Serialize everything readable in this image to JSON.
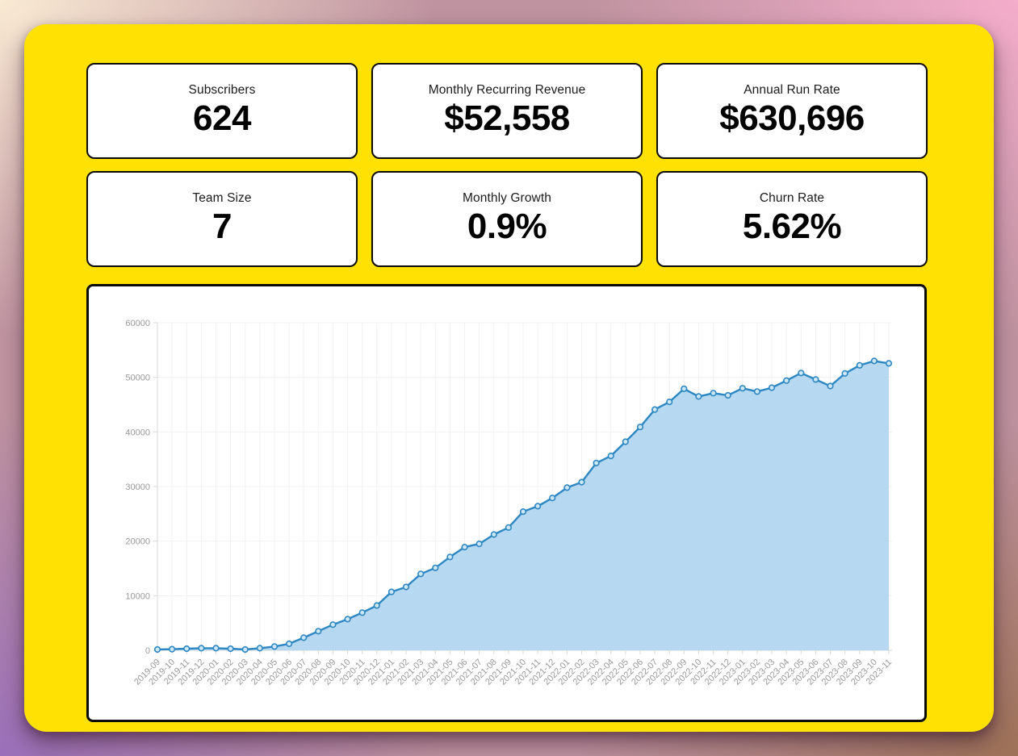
{
  "colors": {
    "board": "#ffe203",
    "card_border": "#0a0a0a",
    "bg_corner_tl": "#f9ead3",
    "bg_corner_tr": "#f4adcb",
    "bg_corner_bl": "#9b70ba",
    "bg_corner_br": "#9e7257"
  },
  "cards": [
    {
      "label": "Subscribers",
      "value": "624"
    },
    {
      "label": "Monthly Recurring Revenue",
      "value": "$52,558"
    },
    {
      "label": "Annual Run Rate",
      "value": "$630,696"
    },
    {
      "label": "Team Size",
      "value": "7"
    },
    {
      "label": "Monthly Growth",
      "value": "0.9%"
    },
    {
      "label": "Churn Rate",
      "value": "5.62%"
    }
  ],
  "chart_data": {
    "type": "area",
    "title": "",
    "xlabel": "",
    "ylabel": "",
    "grid": true,
    "legend": "none",
    "ylim": [
      0,
      60000
    ],
    "yticks": [
      0,
      10000,
      20000,
      30000,
      40000,
      50000,
      60000
    ],
    "x": [
      "2019-09",
      "2019-10",
      "2019-11",
      "2019-12",
      "2020-01",
      "2020-02",
      "2020-03",
      "2020-04",
      "2020-05",
      "2020-06",
      "2020-07",
      "2020-08",
      "2020-09",
      "2020-10",
      "2020-11",
      "2020-12",
      "2021-01",
      "2021-02",
      "2021-03",
      "2021-04",
      "2021-05",
      "2021-06",
      "2021-07",
      "2021-08",
      "2021-09",
      "2021-10",
      "2021-11",
      "2021-12",
      "2022-01",
      "2022-02",
      "2022-03",
      "2022-04",
      "2022-05",
      "2022-06",
      "2022-07",
      "2022-08",
      "2022-09",
      "2022-10",
      "2022-11",
      "2022-12",
      "2023-01",
      "2023-02",
      "2023-03",
      "2023-04",
      "2023-05",
      "2023-06",
      "2023-07",
      "2023-08",
      "2023-09",
      "2023-10",
      "2023-11"
    ],
    "series": [
      {
        "name": "Monthly Recurring Revenue",
        "values": [
          150,
          200,
          300,
          380,
          380,
          300,
          150,
          380,
          700,
          1200,
          2300,
          3500,
          4700,
          5700,
          6900,
          8200,
          10700,
          11600,
          14000,
          15100,
          17100,
          18900,
          19500,
          21200,
          22500,
          25400,
          26400,
          27900,
          29800,
          30800,
          34300,
          35600,
          38200,
          40900,
          44100,
          45500,
          47900,
          46500,
          47100,
          46700,
          48000,
          47400,
          48100,
          49400,
          50800,
          49600,
          48400,
          50700,
          52200,
          53000,
          52558
        ]
      }
    ],
    "line_color": "#2d87c3",
    "fill_color": "#aed4ef",
    "marker_fill": "#cde7f7",
    "grid_color": "#f1f1f1",
    "axis_color": "#d9d9d9",
    "tick_label_color": "#999999"
  }
}
